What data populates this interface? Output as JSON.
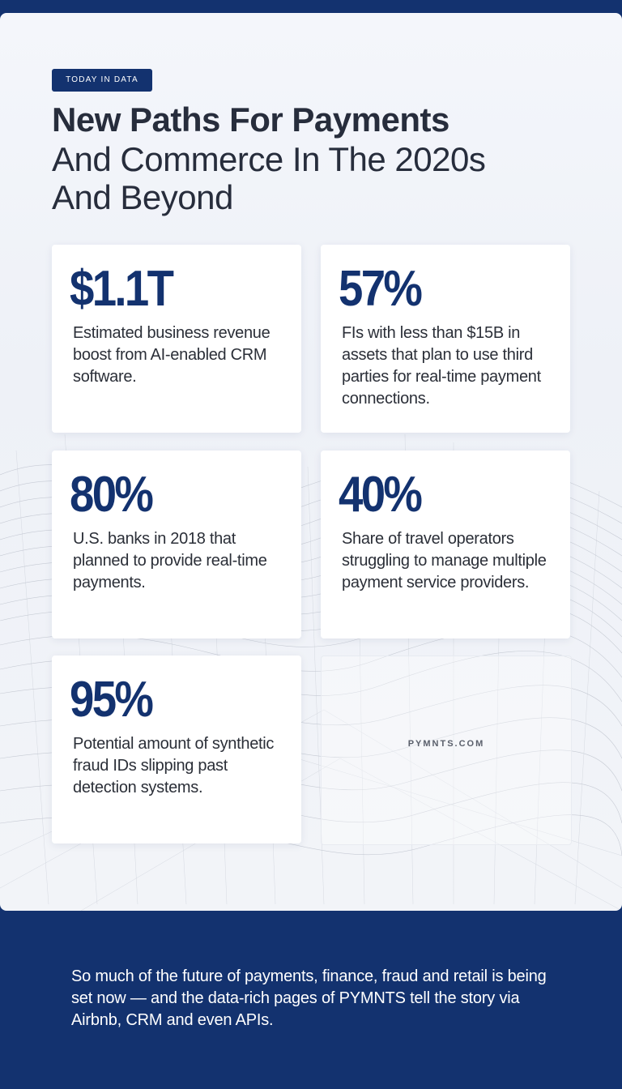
{
  "tag": "TODAY IN DATA",
  "title": {
    "bold": "New Paths For Payments",
    "light_line1": "And Commerce In The 2020s",
    "light_line2": "And Beyond"
  },
  "stats": [
    {
      "value": "$1.1T",
      "text": "Estimated business revenue boost from AI-enabled CRM software."
    },
    {
      "value": "57%",
      "text": "FIs with less than $15B in assets that plan to use third parties for real-time payment connections."
    },
    {
      "value": "80%",
      "text": "U.S. banks in 2018 that planned to provide real-time payments."
    },
    {
      "value": "40%",
      "text": "Share of travel operators struggling to manage multiple payment service providers."
    },
    {
      "value": "95%",
      "text": "Potential amount of synthetic fraud IDs slipping past detection systems."
    }
  ],
  "logo": "PYMNTS.COM",
  "footer": "So much of the future of payments, finance, fraud and retail is being set now — and the data-rich pages of PYMNTS tell the story via Airbnb, CRM and even APIs.",
  "colors": {
    "navy": "#13326f",
    "title": "#272d3c",
    "panel": "#f4f6fb"
  }
}
